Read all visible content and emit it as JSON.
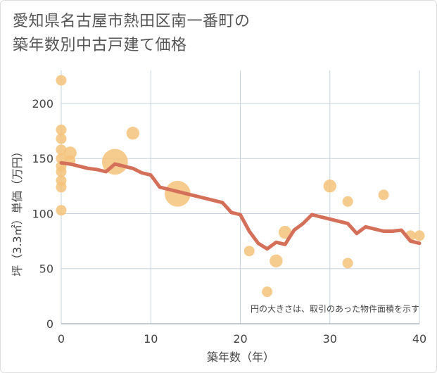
{
  "title_line1": "愛知県名古屋市熱田区南一番町の",
  "title_line2": "築年数別中古戸建て価格",
  "chart_data": {
    "type": "scatter",
    "title": "愛知県名古屋市熱田区南一番町の築年数別中古戸建て価格",
    "xlabel": "築年数（年）",
    "ylabel": "坪（3.3㎡）単価（万円）",
    "xlim": [
      0,
      40
    ],
    "ylim": [
      0,
      230
    ],
    "xticks": [
      0,
      10,
      20,
      30,
      40
    ],
    "yticks": [
      0,
      50,
      100,
      150,
      200
    ],
    "grid": true,
    "note": "円の大きさは、取引のあった物件面積を示す",
    "colors": {
      "points": "#f5c27a",
      "line": "#d4705a"
    },
    "points": [
      {
        "x": 0,
        "y": 221,
        "size": 1
      },
      {
        "x": 0,
        "y": 176,
        "size": 1
      },
      {
        "x": 0,
        "y": 168,
        "size": 1
      },
      {
        "x": 0,
        "y": 158,
        "size": 1
      },
      {
        "x": 0,
        "y": 150,
        "size": 1
      },
      {
        "x": 0,
        "y": 143,
        "size": 1
      },
      {
        "x": 0,
        "y": 138,
        "size": 1
      },
      {
        "x": 0,
        "y": 130,
        "size": 1
      },
      {
        "x": 0,
        "y": 124,
        "size": 1
      },
      {
        "x": 0,
        "y": 103,
        "size": 1
      },
      {
        "x": 1,
        "y": 155,
        "size": 1.5
      },
      {
        "x": 1,
        "y": 148,
        "size": 1
      },
      {
        "x": 6,
        "y": 147,
        "size": 6
      },
      {
        "x": 8,
        "y": 173,
        "size": 1.5
      },
      {
        "x": 13,
        "y": 118,
        "size": 6
      },
      {
        "x": 21,
        "y": 66,
        "size": 1
      },
      {
        "x": 23,
        "y": 29,
        "size": 1
      },
      {
        "x": 24,
        "y": 57,
        "size": 1.5
      },
      {
        "x": 25,
        "y": 83,
        "size": 1.5
      },
      {
        "x": 30,
        "y": 125,
        "size": 1.5
      },
      {
        "x": 32,
        "y": 111,
        "size": 1
      },
      {
        "x": 32,
        "y": 55,
        "size": 1
      },
      {
        "x": 36,
        "y": 117,
        "size": 1
      },
      {
        "x": 39,
        "y": 80,
        "size": 1
      },
      {
        "x": 40,
        "y": 80,
        "size": 1
      }
    ],
    "trend": {
      "x": [
        0,
        1,
        2,
        3,
        4,
        5,
        6,
        7,
        8,
        9,
        10,
        11,
        12,
        13,
        14,
        15,
        16,
        17,
        18,
        19,
        20,
        21,
        22,
        23,
        24,
        25,
        26,
        27,
        28,
        29,
        30,
        31,
        32,
        33,
        34,
        35,
        36,
        37,
        38,
        39,
        40
      ],
      "y": [
        146,
        145,
        143,
        141,
        140,
        138,
        145,
        143,
        141,
        137,
        135,
        124,
        122,
        120,
        118,
        116,
        114,
        112,
        110,
        101,
        99,
        84,
        73,
        68,
        74,
        72,
        85,
        91,
        99,
        97,
        95,
        93,
        91,
        82,
        88,
        86,
        84,
        84,
        85,
        75,
        73
      ]
    }
  }
}
